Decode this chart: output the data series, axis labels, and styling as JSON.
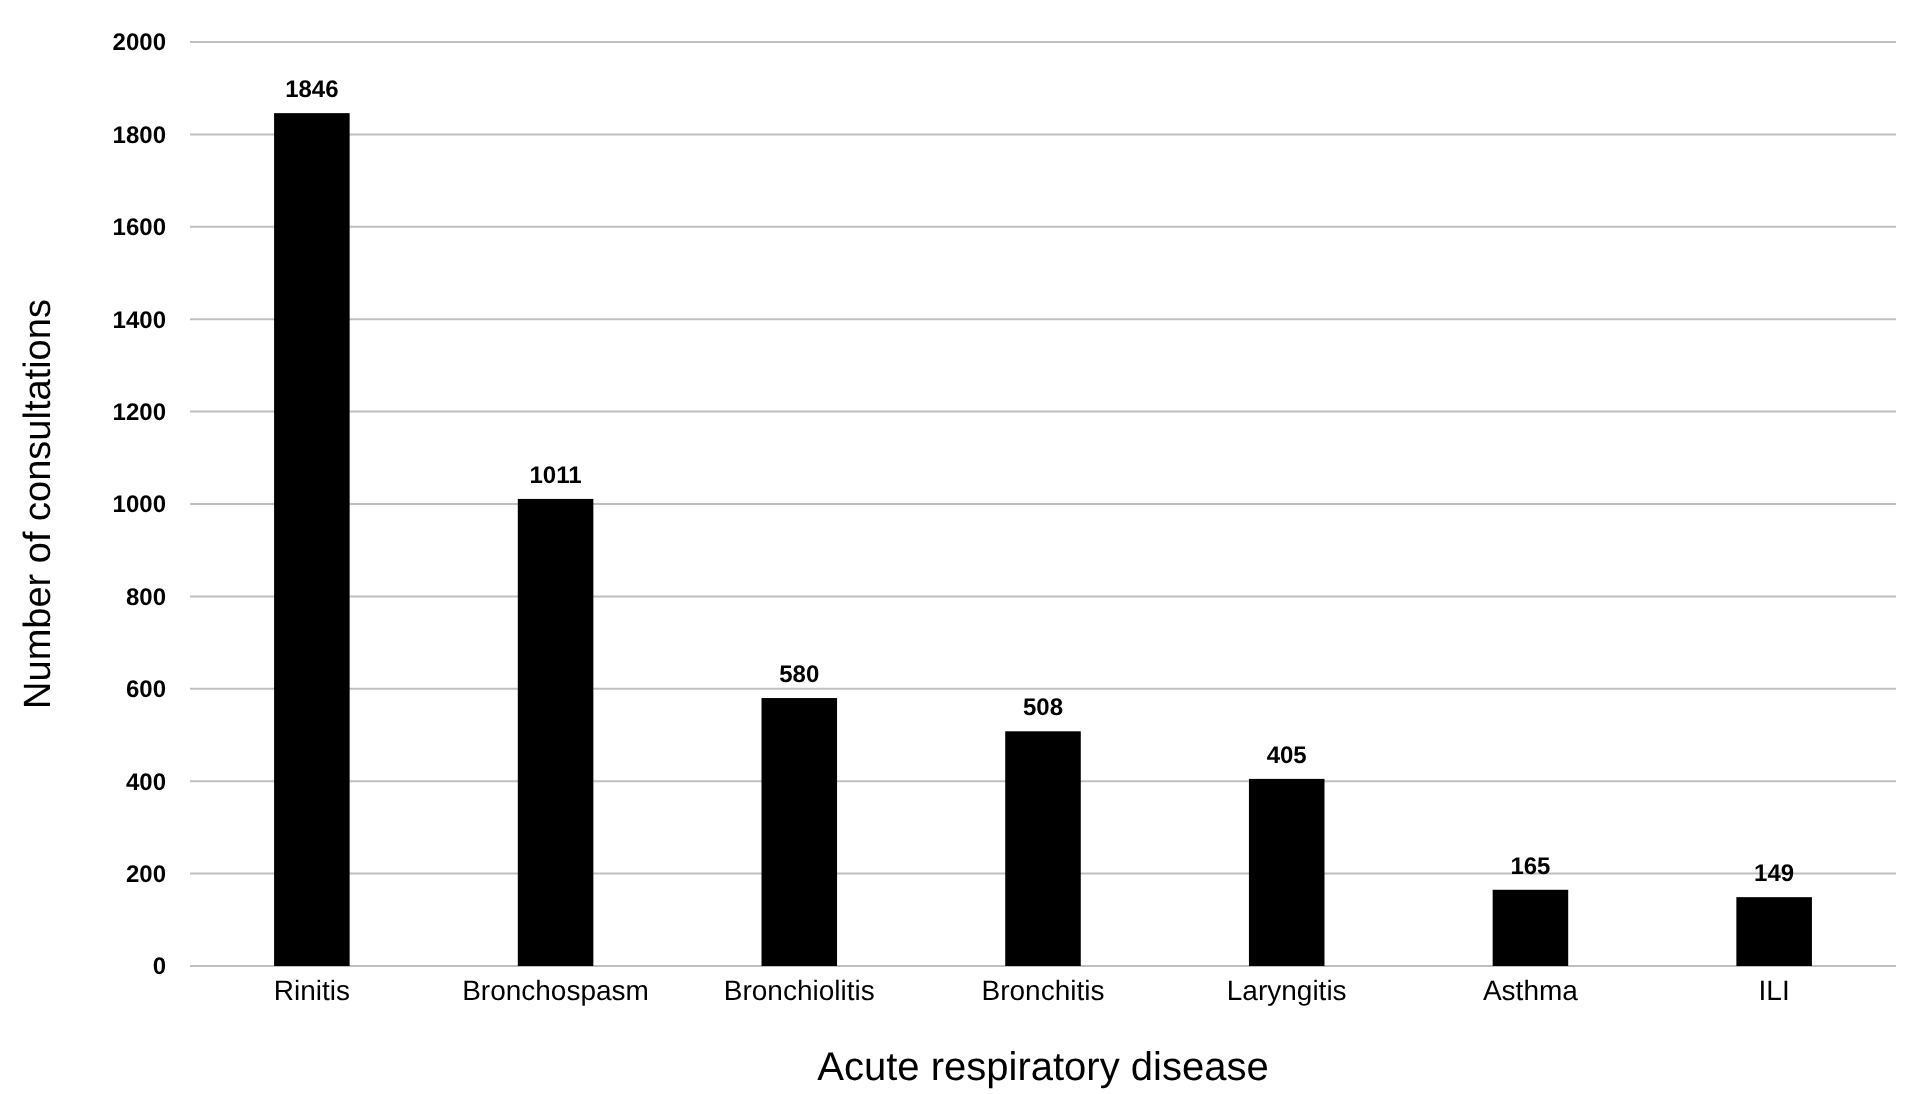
{
  "chart_data": {
    "type": "bar",
    "xlabel": "Acute respiratory disease",
    "ylabel": "Number of consultations",
    "categories": [
      "Rinitis",
      "Bronchospasm",
      "Bronchiolitis",
      "Bronchitis",
      "Laryngitis",
      "Asthma",
      "ILI"
    ],
    "values": [
      1846,
      1011,
      580,
      508,
      405,
      165,
      149
    ],
    "color": "#000000",
    "ylim": [
      0,
      2000
    ],
    "yticks": [
      0,
      200,
      400,
      600,
      800,
      1000,
      1200,
      1400,
      1600,
      1800,
      2000
    ],
    "grid": "y",
    "data_labels": true
  }
}
